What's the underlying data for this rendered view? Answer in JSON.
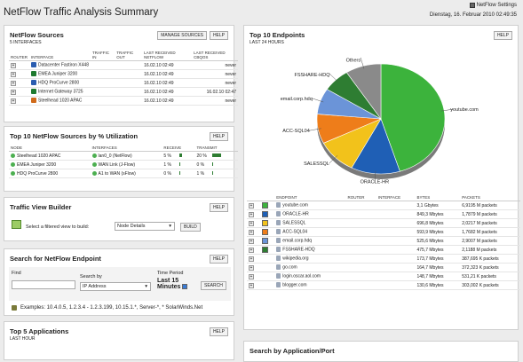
{
  "header": {
    "title": "NetFlow Traffic Analysis Summary",
    "settings_label": "NetFlow Settings",
    "datetime": "Dienstag, 16. Februar 2010 02:49:35"
  },
  "sources": {
    "title": "NetFlow Sources",
    "subtitle": "5 INTERFACES",
    "manage_label": "MANAGE SOURCES",
    "help_label": "HELP",
    "columns": [
      "ROUTER",
      "INTERFACE",
      "TRAFFIC IN",
      "TRAFFIC OUT",
      "LAST RECEIVED NETFLOW",
      "LAST RECEIVED CBQOS"
    ],
    "rows": [
      {
        "name": "Datacenter Fastiron X448",
        "netflow": "16.02.10 02:49",
        "cbqos": "never",
        "color": "#2a5db0"
      },
      {
        "name": "EMEA Juniper 3200",
        "netflow": "16.02.10 02:49",
        "cbqos": "never",
        "color": "#1e7a2f"
      },
      {
        "name": "HDQ ProCurve 2800",
        "netflow": "16.02.10 02:49",
        "cbqos": "never",
        "color": "#2a5db0"
      },
      {
        "name": "Internet Gateway 3725",
        "netflow": "16.02.10 02:49",
        "cbqos": "16.02.10 02:47",
        "color": "#1e7a2f"
      },
      {
        "name": "Steelhead 1020 APAC",
        "netflow": "16.02.10 02:49",
        "cbqos": "never",
        "color": "#d06a1a"
      }
    ]
  },
  "top10": {
    "title": "Top 10 NetFlow Sources by % Utilization",
    "help_label": "HELP",
    "columns": [
      "NODE",
      "INTERFACES",
      "RECEIVE",
      "TRANSMIT"
    ],
    "rows": [
      {
        "node": "Steelhead 1020 APAC",
        "iface": "lan0_0 (NetFlow)",
        "receive": "5 %",
        "transmit": "20 %",
        "receive_pct": 5,
        "transmit_pct": 20
      },
      {
        "node": "EMEA Juniper 3200",
        "iface": "WAN Link (J-Flow)",
        "receive": "1 %",
        "transmit": "0 %",
        "receive_pct": 1,
        "transmit_pct": 0
      },
      {
        "node": "HDQ ProCurve 2800",
        "iface": "A1 to WAN (sFlow)",
        "receive": "0 %",
        "transmit": "1 %",
        "receive_pct": 0,
        "transmit_pct": 1
      }
    ]
  },
  "builder": {
    "title": "Traffic View Builder",
    "help_label": "HELP",
    "prompt": "Select a filtered view to build:",
    "select_value": "Node Details",
    "build_label": "BUILD"
  },
  "search": {
    "title": "Search for NetFlow Endpoint",
    "help_label": "HELP",
    "find_label": "Find",
    "find_value": "",
    "searchby_label": "Search by",
    "searchby_value": "IP Address",
    "period_label": "Time Period",
    "period_value": "Last 15 Minutes",
    "search_label": "SEARCH",
    "examples": "Examples:  10.4.0.5,  1.2.3.4 - 1.2.3.199,  10.15.1.*,  Server-*, * SolarWinds.Net"
  },
  "apps": {
    "title": "Top 5 Applications",
    "subtitle": "LAST HOUR",
    "help_label": "HELP"
  },
  "endpoints": {
    "title": "Top 10 Endpoints",
    "subtitle": "LAST 24 HOURS",
    "help_label": "HELP",
    "columns": [
      "ENDPOINT",
      "ROUTER",
      "INTERFACE",
      "BYTES",
      "PACKETS"
    ],
    "rows": [
      {
        "name": "youtube.com",
        "bytes": "3,1 Gbytes",
        "packets": "6,9195 M packets",
        "color": "#3cb33c"
      },
      {
        "name": "ORACLE-HR",
        "bytes": "849,3 Mbytes",
        "packets": "1,7879 M packets",
        "color": "#1f5fb5"
      },
      {
        "name": "SALESSQL",
        "bytes": "696,8 Mbytes",
        "packets": "2,0217 M packets",
        "color": "#f2c21b"
      },
      {
        "name": "ACC-SQL04",
        "bytes": "593,9 Mbytes",
        "packets": "1,7682 M packets",
        "color": "#ee7d1a"
      },
      {
        "name": "email.corp.hdq",
        "bytes": "525,6 Mbytes",
        "packets": "2,9007 M packets",
        "color": "#6b94d8"
      },
      {
        "name": "FSSHARE-HDQ",
        "bytes": "475,7 Mbytes",
        "packets": "2,1188 M packets",
        "color": "#2e7d32"
      },
      {
        "name": "wikipedia.org",
        "bytes": "173,7 Mbytes",
        "packets": "387,695 K packets",
        "color": ""
      },
      {
        "name": "go.com",
        "bytes": "164,7 Mbytes",
        "packets": "372,323 K packets",
        "color": ""
      },
      {
        "name": "login.oscar.aol.com",
        "bytes": "148,7 Mbytes",
        "packets": "531,21 K packets",
        "color": ""
      },
      {
        "name": "blogger.com",
        "bytes": "130,6 Mbytes",
        "packets": "303,002 K packets",
        "color": ""
      }
    ]
  },
  "chart_data": {
    "type": "pie",
    "categories": [
      "youtube.com",
      "ORACLE-HR",
      "SALESSQL",
      "ACC-SQL04",
      "email.corp.hdq",
      "FSSHARE-HDQ",
      "Others"
    ],
    "values": [
      3100,
      849.3,
      696.8,
      593.9,
      525.6,
      475.7,
      617.7
    ],
    "colors": [
      "#3cb33c",
      "#1f5fb5",
      "#f2c21b",
      "#ee7d1a",
      "#6b94d8",
      "#2e7d32",
      "#8a8a8a"
    ]
  },
  "appsearch": {
    "title": "Search by Application/Port"
  }
}
